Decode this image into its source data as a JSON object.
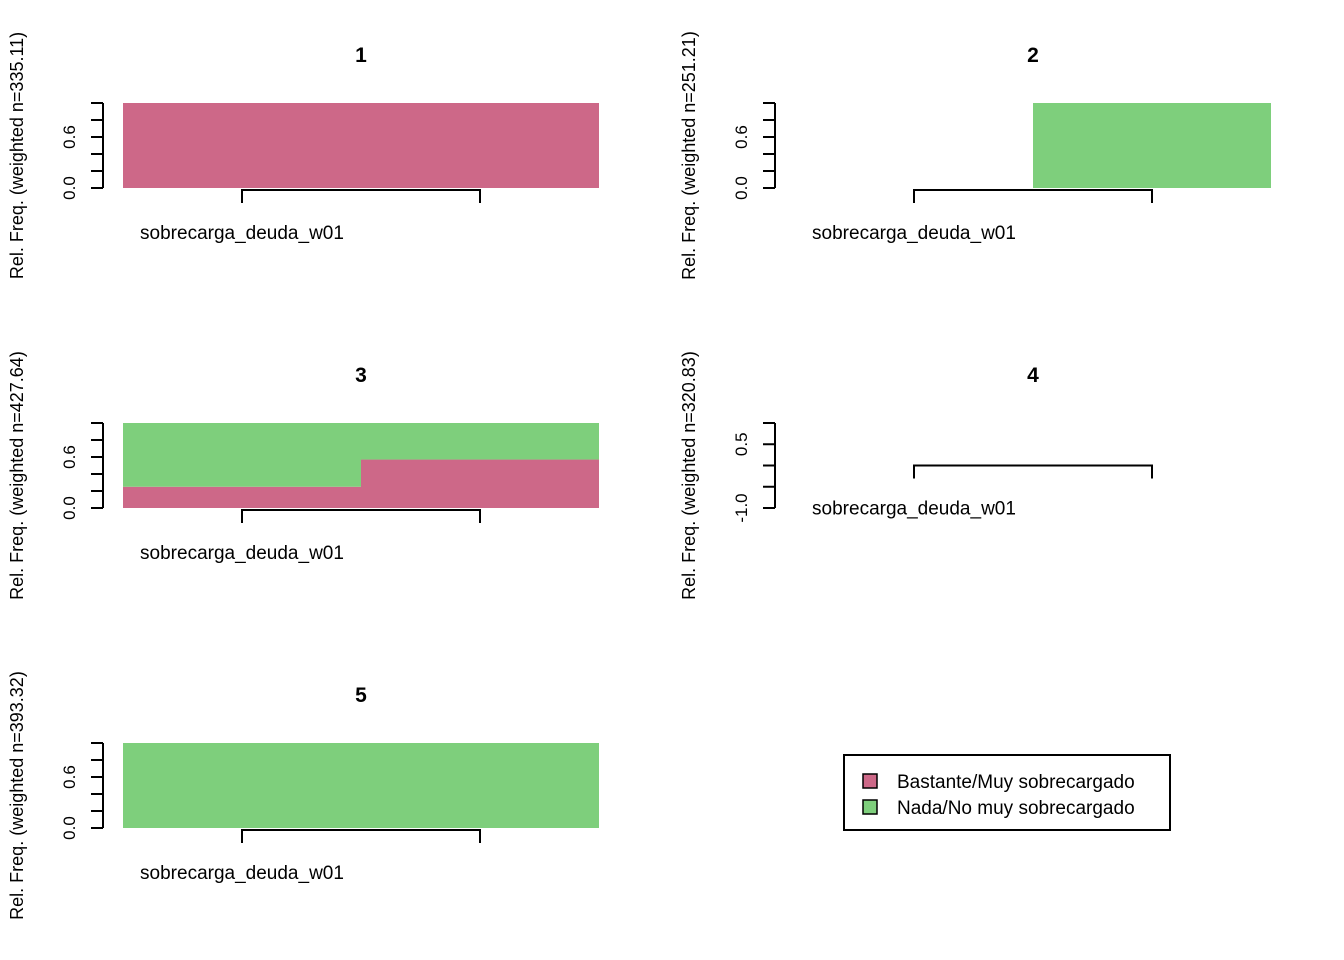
{
  "colors": {
    "Bastante/Muy sobrecargado": "#cd6888",
    "Nada/No muy sobrecargado": "#7ecf7c"
  },
  "legend": {
    "placement": "bottom-right",
    "items": [
      {
        "label": "Bastante/Muy sobrecargado",
        "color": "#cd6888"
      },
      {
        "label": "Nada/No muy sobrecargado",
        "color": "#7ecf7c"
      }
    ]
  },
  "chart_data": [
    {
      "type": "bar",
      "title": "1",
      "ylabel": "Rel. Freq. (weighted n=335.11)",
      "xlabel": "sobrecarga_deuda_w01",
      "ylim": [
        0,
        1
      ],
      "yticks": [
        "0.0",
        "0.6"
      ],
      "stacked": true,
      "segments": [
        {
          "x_from": 0,
          "x_to": 1,
          "stack": [
            {
              "category": "Bastante/Muy sobrecargado",
              "value": 1.0
            }
          ]
        }
      ]
    },
    {
      "type": "bar",
      "title": "2",
      "ylabel": "Rel. Freq. (weighted n=251.21)",
      "xlabel": "sobrecarga_deuda_w01",
      "ylim": [
        0,
        1
      ],
      "yticks": [
        "0.0",
        "0.6"
      ],
      "stacked": true,
      "segments": [
        {
          "x_from": 0.5,
          "x_to": 1,
          "stack": [
            {
              "category": "Nada/No muy sobrecargado",
              "value": 1.0
            }
          ]
        }
      ]
    },
    {
      "type": "bar",
      "title": "3",
      "ylabel": "Rel. Freq. (weighted n=427.64)",
      "xlabel": "sobrecarga_deuda_w01",
      "ylim": [
        0,
        1
      ],
      "yticks": [
        "0.0",
        "0.6"
      ],
      "stacked": true,
      "segments": [
        {
          "x_from": 0,
          "x_to": 0.5,
          "stack": [
            {
              "category": "Bastante/Muy sobrecargado",
              "value": 0.25
            },
            {
              "category": "Nada/No muy sobrecargado",
              "value": 0.75
            }
          ]
        },
        {
          "x_from": 0.5,
          "x_to": 1,
          "stack": [
            {
              "category": "Bastante/Muy sobrecargado",
              "value": 0.57
            },
            {
              "category": "Nada/No muy sobrecargado",
              "value": 0.43
            }
          ]
        }
      ]
    },
    {
      "type": "bar",
      "title": "4",
      "ylabel": "Rel. Freq. (weighted n=320.83)",
      "xlabel": "sobrecarga_deuda_w01",
      "ylim": [
        -1,
        1
      ],
      "yticks": [
        "-1.0",
        "0.5"
      ],
      "stacked": true,
      "segments": []
    },
    {
      "type": "bar",
      "title": "5",
      "ylabel": "Rel. Freq. (weighted n=393.32)",
      "xlabel": "sobrecarga_deuda_w01",
      "ylim": [
        0,
        1
      ],
      "yticks": [
        "0.0",
        "0.6"
      ],
      "stacked": true,
      "segments": [
        {
          "x_from": 0,
          "x_to": 1,
          "stack": [
            {
              "category": "Nada/No muy sobrecargado",
              "value": 1.0
            }
          ]
        }
      ]
    }
  ]
}
